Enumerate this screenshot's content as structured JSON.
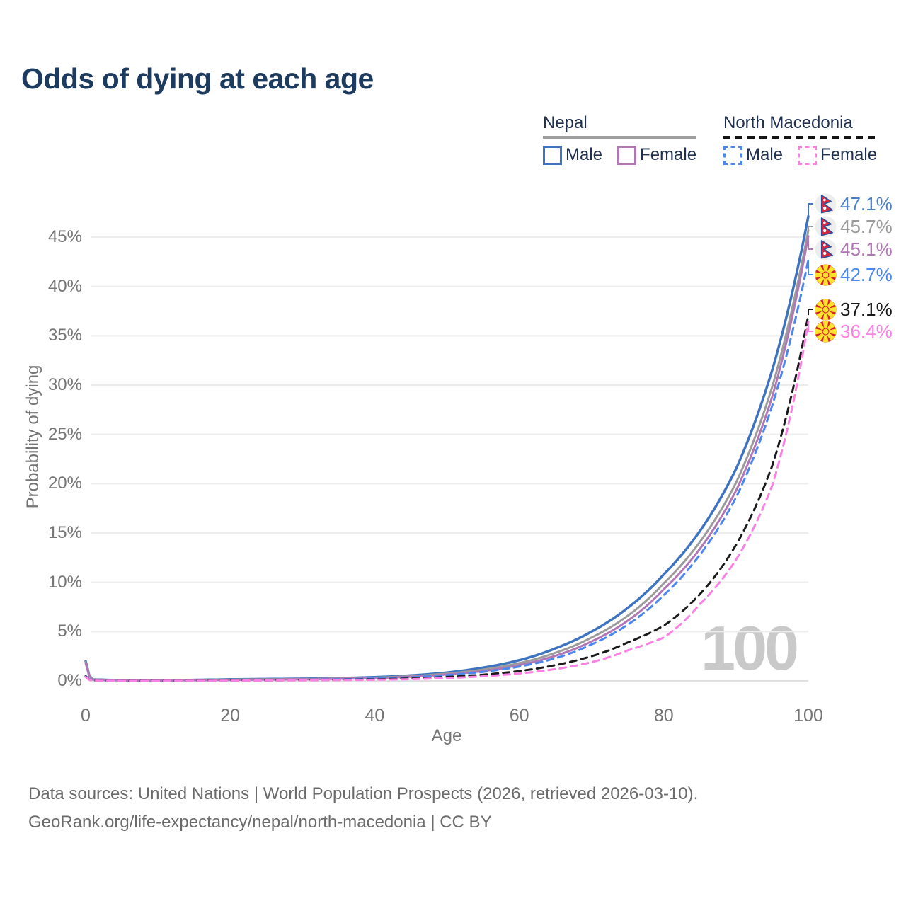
{
  "title": "Odds of dying at each age",
  "legend": {
    "groups": [
      {
        "country": "Nepal",
        "line_style": "solid",
        "underline_color": "#9e9e9e",
        "items": [
          {
            "label": "Male",
            "color": "#3e73c0",
            "dashed": false
          },
          {
            "label": "Female",
            "color": "#b077b4",
            "dashed": false
          }
        ]
      },
      {
        "country": "North Macedonia",
        "line_style": "dashed",
        "underline_color": "#151515",
        "items": [
          {
            "label": "Male",
            "color": "#4b87ef",
            "dashed": true
          },
          {
            "label": "Female",
            "color": "#fb80e3",
            "dashed": true
          }
        ]
      }
    ]
  },
  "chart_data": {
    "type": "line",
    "title": "Odds of dying at each age",
    "xlabel": "Age",
    "ylabel": "Probability of dying",
    "xlim": [
      0,
      100
    ],
    "ylim_percent": [
      0,
      45
    ],
    "x_ticks": [
      0,
      20,
      40,
      60,
      80,
      100
    ],
    "y_ticks_percent": [
      0,
      5,
      10,
      15,
      20,
      25,
      30,
      35,
      40,
      45
    ],
    "grid": true,
    "legend_position": "top-right",
    "watermark": "100",
    "ages": [
      0,
      1,
      5,
      10,
      15,
      20,
      25,
      30,
      35,
      40,
      45,
      50,
      55,
      60,
      65,
      70,
      75,
      80,
      85,
      90,
      95,
      100
    ],
    "series": [
      {
        "name": "Nepal — Male",
        "country": "Nepal",
        "sex": "Male",
        "color": "#3e73c0",
        "dashed": false,
        "width": 3.5,
        "values_percent": [
          2.0,
          0.15,
          0.07,
          0.06,
          0.1,
          0.16,
          0.19,
          0.22,
          0.28,
          0.38,
          0.55,
          0.85,
          1.35,
          2.1,
          3.3,
          5.0,
          7.4,
          10.8,
          15.2,
          21.5,
          31.5,
          47.1
        ],
        "end_label": "47.1%",
        "label_color": "#4c7fc6"
      },
      {
        "name": "Nepal — Both sexes",
        "country": "Nepal",
        "sex": "Both",
        "color": "#9b9b9b",
        "dashed": false,
        "width": 3,
        "values_percent": [
          1.9,
          0.14,
          0.06,
          0.05,
          0.09,
          0.13,
          0.16,
          0.19,
          0.24,
          0.33,
          0.48,
          0.74,
          1.15,
          1.8,
          2.85,
          4.4,
          6.6,
          9.9,
          14.1,
          20.1,
          29.8,
          45.7
        ],
        "end_label": "45.7%",
        "label_color": "#9b9b9b"
      },
      {
        "name": "Nepal — Female",
        "country": "Nepal",
        "sex": "Female",
        "color": "#b077b4",
        "dashed": false,
        "width": 3,
        "values_percent": [
          1.8,
          0.13,
          0.06,
          0.05,
          0.07,
          0.1,
          0.13,
          0.16,
          0.21,
          0.29,
          0.42,
          0.65,
          1.0,
          1.6,
          2.55,
          4.0,
          6.1,
          9.3,
          13.4,
          19.3,
          28.8,
          45.1
        ],
        "end_label": "45.1%",
        "label_color": "#b077b4"
      },
      {
        "name": "North Macedonia — Male",
        "country": "North Macedonia",
        "sex": "Male",
        "color": "#4b87ef",
        "dashed": true,
        "width": 3,
        "values_percent": [
          0.5,
          0.04,
          0.02,
          0.02,
          0.04,
          0.07,
          0.09,
          0.11,
          0.16,
          0.23,
          0.36,
          0.58,
          0.92,
          1.45,
          2.3,
          3.7,
          5.7,
          8.7,
          12.8,
          18.6,
          27.9,
          42.7
        ],
        "end_label": "42.7%",
        "label_color": "#4b87ef"
      },
      {
        "name": "North Macedonia — Both sexes",
        "country": "North Macedonia",
        "sex": "Both",
        "color": "#1a1a1a",
        "dashed": true,
        "width": 3,
        "values_percent": [
          0.45,
          0.03,
          0.02,
          0.02,
          0.03,
          0.05,
          0.06,
          0.08,
          0.11,
          0.16,
          0.25,
          0.4,
          0.63,
          1.0,
          1.6,
          2.5,
          3.9,
          5.6,
          8.8,
          13.8,
          21.8,
          37.1
        ],
        "end_label": "37.1%",
        "label_color": "#1a1a1a"
      },
      {
        "name": "North Macedonia — Female",
        "country": "North Macedonia",
        "sex": "Female",
        "color": "#fb80e3",
        "dashed": true,
        "width": 3,
        "values_percent": [
          0.4,
          0.03,
          0.01,
          0.01,
          0.02,
          0.03,
          0.04,
          0.06,
          0.08,
          0.12,
          0.18,
          0.29,
          0.47,
          0.75,
          1.2,
          1.9,
          3.1,
          4.4,
          7.8,
          12.3,
          19.8,
          36.4
        ],
        "end_label": "36.4%",
        "label_color": "#fb80e3"
      }
    ]
  },
  "footer": {
    "line1": "Data sources: United Nations | World Population Prospects (2026, retrieved 2026-03-10).",
    "line2": "GeoRank.org/life-expectancy/nepal/north-macedonia | CC BY"
  }
}
